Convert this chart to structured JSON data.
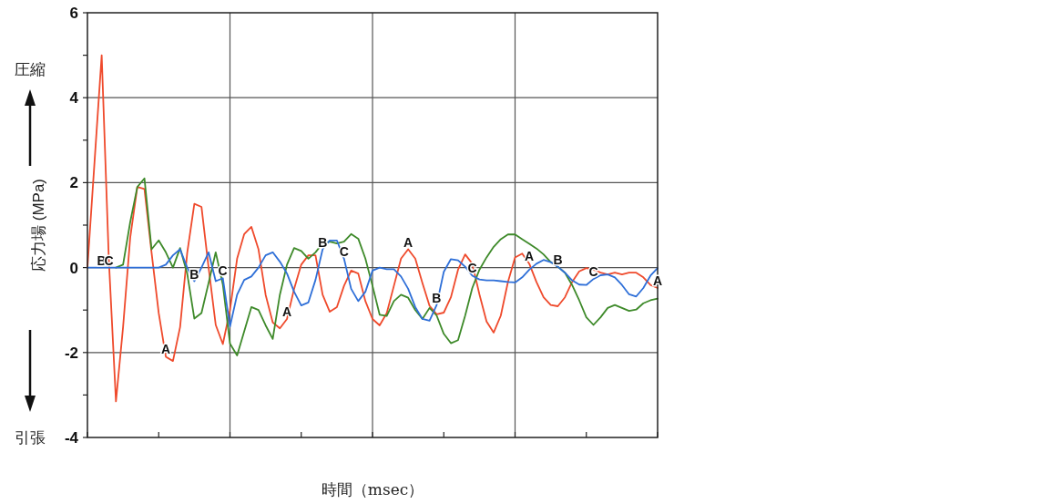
{
  "chart_data": {
    "type": "line",
    "ylabel": "応力場 (MPa)",
    "xlabel": "時間（msec）",
    "annotations": [
      "圧縮",
      "引張"
    ],
    "categories": [
      null,
      null,
      null,
      null,
      null,
      null,
      null,
      null,
      null,
      null,
      null,
      null,
      null,
      null,
      null,
      null,
      null,
      null,
      null,
      null,
      null,
      null,
      null,
      null,
      null,
      null,
      null,
      null,
      null,
      null,
      null,
      null,
      null,
      null,
      null,
      null,
      null,
      null,
      null,
      null,
      null,
      null,
      null,
      null,
      null,
      null,
      null,
      null,
      null,
      null,
      null,
      null,
      null,
      null,
      null,
      null,
      null,
      null,
      null,
      null,
      null,
      null,
      null,
      null,
      null,
      null,
      null,
      null,
      null,
      null,
      null,
      null,
      null,
      null,
      null,
      null,
      null,
      null,
      null,
      null,
      null
    ],
    "ylim": [
      -4,
      6
    ],
    "yticks": [
      -4,
      {
        "value": -3,
        "label": null
      },
      -2,
      {
        "value": -1,
        "label": null
      },
      0,
      {
        "value": 1,
        "label": null
      },
      2,
      {
        "value": 3,
        "label": null
      },
      4,
      {
        "value": 5,
        "label": null
      },
      6
    ],
    "grid": true,
    "series": [
      {
        "color": "#ef4a2c",
        "values": [
          0,
          2.5,
          5.0,
          0.2,
          -3.15,
          -1.4,
          0.7,
          1.9,
          1.85,
          0.35,
          -1.07,
          -2.1,
          -2.2,
          -1.4,
          0.35,
          1.5,
          1.43,
          0,
          -1.35,
          -1.8,
          -1.0,
          0.21,
          0.79,
          0.96,
          0.43,
          -0.64,
          -1.29,
          -1.43,
          -1.21,
          -0.5,
          0.07,
          0.29,
          0.29,
          -0.64,
          -1.04,
          -0.93,
          -0.43,
          -0.07,
          -0.14,
          -0.79,
          -1.21,
          -1.36,
          -1.07,
          -0.43,
          0.21,
          0.43,
          0.21,
          -0.36,
          -0.9,
          -1.1,
          -1.06,
          -0.7,
          -0.05,
          0.31,
          0.09,
          -0.63,
          -1.27,
          -1.53,
          -1.13,
          -0.34,
          0.24,
          0.33,
          0.09,
          -0.34,
          -0.7,
          -0.88,
          -0.91,
          -0.7,
          -0.34,
          -0.09,
          -0.01,
          -0.05,
          -0.12,
          -0.16,
          -0.12,
          -0.16,
          -0.12,
          -0.12,
          -0.23,
          -0.41,
          -0.48
        ],
        "value_labels": [
          null,
          null,
          null,
          null,
          null,
          null,
          null,
          null,
          null,
          null,
          null,
          "A",
          null,
          null,
          null,
          null,
          null,
          null,
          null,
          null,
          null,
          null,
          null,
          null,
          null,
          null,
          null,
          null,
          "A",
          null,
          null,
          null,
          null,
          null,
          null,
          null,
          null,
          null,
          null,
          null,
          null,
          null,
          null,
          null,
          null,
          "A",
          null,
          null,
          null,
          null,
          null,
          null,
          null,
          null,
          null,
          null,
          null,
          null,
          null,
          null,
          null,
          null,
          "A",
          null,
          null,
          null,
          null,
          null,
          null,
          null,
          null,
          null,
          null,
          null,
          null,
          null,
          null,
          null,
          null,
          null,
          "A"
        ]
      },
      {
        "color": "#3e8a2a",
        "values": [
          null,
          null,
          null,
          null,
          0,
          0.07,
          1.07,
          1.9,
          2.1,
          0.43,
          0.64,
          0.36,
          0,
          0.46,
          -0.14,
          -1.2,
          -1.07,
          -0.36,
          0.36,
          -0.4,
          -1.79,
          -2.07,
          -1.5,
          -0.93,
          -1.0,
          -1.36,
          -1.68,
          -0.64,
          0.07,
          0.46,
          0.39,
          0.21,
          0.36,
          0.57,
          0.61,
          0.57,
          0.61,
          0.79,
          0.68,
          0.21,
          -0.43,
          -1.11,
          -1.14,
          -0.79,
          -0.64,
          -0.71,
          -1.0,
          -1.21,
          -0.95,
          -1.13,
          -1.56,
          -1.78,
          -1.71,
          -1.13,
          -0.48,
          -0.05,
          0.24,
          0.49,
          0.67,
          0.78,
          0.78,
          0.67,
          0.56,
          0.45,
          0.31,
          0.13,
          0.02,
          -0.12,
          -0.41,
          -0.77,
          -1.17,
          -1.35,
          -1.17,
          -0.95,
          -0.88,
          -0.95,
          -1.02,
          -0.99,
          -0.84,
          -0.77,
          -0.73
        ],
        "value_labels": [
          null,
          null,
          null,
          null,
          null,
          null,
          null,
          null,
          null,
          null,
          null,
          null,
          null,
          null,
          null,
          null,
          null,
          null,
          null,
          null,
          null,
          null,
          null,
          null,
          null,
          null,
          null,
          null,
          null,
          null,
          null,
          null,
          null,
          null,
          null,
          null,
          null,
          null,
          null,
          null,
          null,
          null,
          null,
          null,
          null,
          null,
          null,
          null,
          null,
          null,
          null,
          null,
          null,
          null,
          null,
          null,
          null,
          null,
          null,
          null,
          null,
          null,
          null,
          null,
          null,
          null,
          null,
          null,
          null,
          null,
          null,
          null,
          null,
          null,
          null,
          null,
          null,
          null,
          null,
          null,
          null
        ]
      },
      {
        "color": "#2e6fd8",
        "values": [
          0,
          0,
          0,
          0,
          0,
          0,
          0,
          0,
          0,
          0,
          0,
          0.07,
          0.29,
          0.43,
          0,
          -0.32,
          0,
          0.36,
          -0.32,
          -0.25,
          -1.39,
          -0.64,
          -0.29,
          -0.21,
          0,
          0.29,
          0.36,
          0.14,
          -0.14,
          -0.57,
          -0.89,
          -0.82,
          -0.29,
          0.43,
          0.64,
          0.64,
          0.21,
          -0.5,
          -0.79,
          -0.57,
          -0.07,
          0,
          -0.04,
          -0.04,
          -0.21,
          -0.5,
          -0.93,
          -1.21,
          -1.25,
          -0.88,
          -0.1,
          0.2,
          0.17,
          0.02,
          -0.19,
          -0.28,
          -0.3,
          -0.3,
          -0.32,
          -0.34,
          -0.35,
          -0.23,
          -0.05,
          0.09,
          0.18,
          0.13,
          0.02,
          -0.12,
          -0.3,
          -0.4,
          -0.41,
          -0.27,
          -0.18,
          -0.16,
          -0.23,
          -0.41,
          -0.63,
          -0.68,
          -0.48,
          -0.19,
          -0.01
        ],
        "value_labels": [
          null,
          null,
          "B",
          "C",
          null,
          null,
          null,
          null,
          null,
          null,
          null,
          null,
          null,
          null,
          null,
          "B",
          null,
          null,
          null,
          "C",
          null,
          null,
          null,
          null,
          null,
          null,
          null,
          null,
          null,
          null,
          null,
          null,
          null,
          "B",
          null,
          null,
          "C",
          null,
          null,
          null,
          null,
          null,
          null,
          null,
          null,
          null,
          null,
          null,
          null,
          "B",
          null,
          null,
          null,
          null,
          "C",
          null,
          null,
          null,
          null,
          null,
          null,
          null,
          null,
          null,
          null,
          null,
          "B",
          null,
          null,
          null,
          null,
          "C",
          null,
          null,
          null,
          null,
          null,
          null,
          null,
          null,
          null
        ]
      }
    ]
  }
}
